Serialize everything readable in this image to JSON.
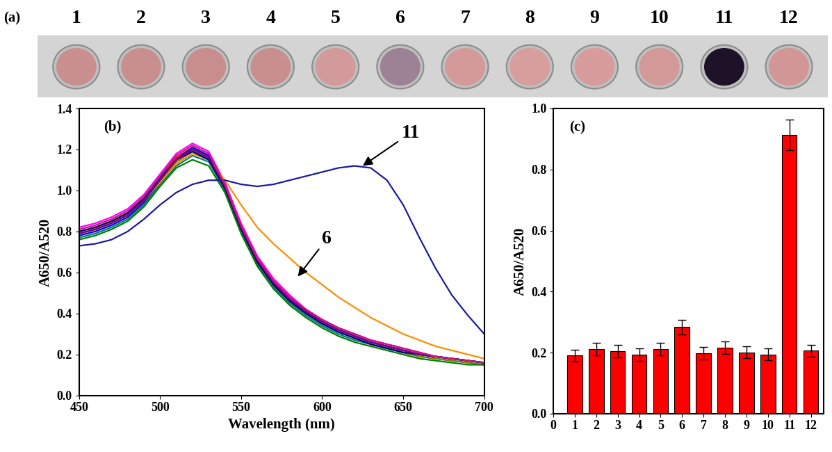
{
  "chart_data": [
    {
      "type": "wells",
      "panel_label": "(a)",
      "categories": [
        "1",
        "2",
        "3",
        "4",
        "5",
        "6",
        "7",
        "8",
        "9",
        "10",
        "11",
        "12"
      ],
      "colors": [
        "#c98f8f",
        "#c98f8f",
        "#c88e8e",
        "#c98f8f",
        "#d29a9a",
        "#9c8294",
        "#d49a9a",
        "#d89e9e",
        "#d89c9c",
        "#d39898",
        "#1e1228",
        "#d29696"
      ]
    },
    {
      "type": "line",
      "panel_label": "(b)",
      "x_label": "Wavelength (nm)",
      "y_label": "A650/A520",
      "x": [
        450,
        460,
        470,
        480,
        490,
        500,
        510,
        520,
        530,
        540,
        550,
        560,
        570,
        580,
        590,
        600,
        610,
        620,
        630,
        640,
        650,
        660,
        670,
        680,
        690,
        700
      ],
      "xlim": [
        450,
        700
      ],
      "xticks": [
        450,
        500,
        550,
        600,
        650,
        700
      ],
      "ylim": [
        0.0,
        1.4
      ],
      "yticks": [
        0.0,
        0.2,
        0.4,
        0.6,
        0.8,
        1.0,
        1.2,
        1.4
      ],
      "series": [
        {
          "color": "#000000",
          "values": [
            0.79,
            0.81,
            0.84,
            0.88,
            0.95,
            1.05,
            1.15,
            1.2,
            1.16,
            1.02,
            0.82,
            0.66,
            0.55,
            0.47,
            0.41,
            0.36,
            0.32,
            0.29,
            0.26,
            0.24,
            0.22,
            0.2,
            0.19,
            0.18,
            0.17,
            0.16
          ]
        },
        {
          "color": "#ff0000",
          "values": [
            0.8,
            0.82,
            0.85,
            0.89,
            0.96,
            1.06,
            1.16,
            1.21,
            1.17,
            1.03,
            0.83,
            0.67,
            0.56,
            0.48,
            0.42,
            0.37,
            0.33,
            0.3,
            0.27,
            0.25,
            0.23,
            0.21,
            0.19,
            0.18,
            0.17,
            0.16
          ]
        },
        {
          "color": "#0000ff",
          "values": [
            0.78,
            0.8,
            0.83,
            0.87,
            0.94,
            1.04,
            1.15,
            1.21,
            1.17,
            1.02,
            0.82,
            0.66,
            0.55,
            0.47,
            0.41,
            0.36,
            0.32,
            0.29,
            0.26,
            0.24,
            0.22,
            0.2,
            0.19,
            0.18,
            0.17,
            0.16
          ]
        },
        {
          "color": "#008080",
          "values": [
            0.77,
            0.79,
            0.82,
            0.86,
            0.93,
            1.03,
            1.12,
            1.17,
            1.14,
            1.0,
            0.8,
            0.64,
            0.53,
            0.45,
            0.39,
            0.34,
            0.3,
            0.27,
            0.25,
            0.23,
            0.21,
            0.19,
            0.18,
            0.17,
            0.16,
            0.15
          ]
        },
        {
          "color": "#ff00ff",
          "values": [
            0.82,
            0.84,
            0.87,
            0.91,
            0.98,
            1.08,
            1.18,
            1.23,
            1.19,
            1.04,
            0.84,
            0.68,
            0.57,
            0.49,
            0.42,
            0.37,
            0.33,
            0.3,
            0.27,
            0.25,
            0.23,
            0.21,
            0.19,
            0.18,
            0.17,
            0.16
          ]
        },
        {
          "color": "#ff8c00",
          "values": [
            0.79,
            0.81,
            0.84,
            0.88,
            0.95,
            1.04,
            1.13,
            1.18,
            1.15,
            1.05,
            0.93,
            0.82,
            0.74,
            0.67,
            0.6,
            0.54,
            0.48,
            0.43,
            0.38,
            0.34,
            0.3,
            0.27,
            0.24,
            0.22,
            0.2,
            0.18
          ]
        },
        {
          "color": "#808000",
          "values": [
            0.79,
            0.81,
            0.84,
            0.88,
            0.95,
            1.05,
            1.14,
            1.19,
            1.15,
            1.01,
            0.81,
            0.65,
            0.54,
            0.46,
            0.4,
            0.35,
            0.31,
            0.28,
            0.25,
            0.23,
            0.21,
            0.19,
            0.18,
            0.17,
            0.16,
            0.15
          ]
        },
        {
          "color": "#000080",
          "values": [
            0.8,
            0.82,
            0.85,
            0.89,
            0.96,
            1.06,
            1.15,
            1.19,
            1.15,
            1.01,
            0.81,
            0.65,
            0.54,
            0.46,
            0.4,
            0.35,
            0.31,
            0.28,
            0.25,
            0.23,
            0.21,
            0.2,
            0.19,
            0.18,
            0.17,
            0.16
          ]
        },
        {
          "color": "#800080",
          "values": [
            0.79,
            0.81,
            0.84,
            0.88,
            0.95,
            1.05,
            1.15,
            1.2,
            1.16,
            1.02,
            0.82,
            0.66,
            0.55,
            0.47,
            0.41,
            0.36,
            0.32,
            0.29,
            0.26,
            0.24,
            0.22,
            0.2,
            0.19,
            0.18,
            0.17,
            0.16
          ]
        },
        {
          "color": "#008000",
          "values": [
            0.76,
            0.78,
            0.81,
            0.85,
            0.92,
            1.02,
            1.11,
            1.15,
            1.12,
            0.99,
            0.79,
            0.63,
            0.52,
            0.44,
            0.38,
            0.33,
            0.29,
            0.26,
            0.24,
            0.22,
            0.2,
            0.18,
            0.17,
            0.16,
            0.15,
            0.15
          ]
        },
        {
          "color": "#1a1aa0",
          "values": [
            0.73,
            0.74,
            0.76,
            0.8,
            0.86,
            0.93,
            0.99,
            1.03,
            1.05,
            1.05,
            1.03,
            1.02,
            1.03,
            1.05,
            1.07,
            1.09,
            1.11,
            1.12,
            1.11,
            1.05,
            0.93,
            0.77,
            0.62,
            0.49,
            0.39,
            0.3
          ]
        },
        {
          "color": "#c71585",
          "values": [
            0.81,
            0.83,
            0.86,
            0.9,
            0.97,
            1.07,
            1.17,
            1.22,
            1.18,
            1.03,
            0.83,
            0.67,
            0.56,
            0.48,
            0.42,
            0.37,
            0.33,
            0.3,
            0.27,
            0.25,
            0.23,
            0.21,
            0.19,
            0.18,
            0.17,
            0.16
          ]
        }
      ],
      "annotations": [
        {
          "text": "11",
          "x": 625,
          "y": 1.12
        },
        {
          "text": "6",
          "x": 585,
          "y": 0.58
        }
      ]
    },
    {
      "type": "bar",
      "panel_label": "(c)",
      "y_label": "A650/A520",
      "x": [
        1,
        2,
        3,
        4,
        5,
        6,
        7,
        8,
        9,
        10,
        11,
        12
      ],
      "values": [
        0.19,
        0.212,
        0.205,
        0.193,
        0.212,
        0.284,
        0.198,
        0.216,
        0.201,
        0.194,
        0.914,
        0.206
      ],
      "errors": [
        0.02,
        0.02,
        0.02,
        0.02,
        0.02,
        0.024,
        0.02,
        0.02,
        0.02,
        0.02,
        0.05,
        0.02
      ],
      "color": "#ff0000",
      "xlim": [
        0,
        12.6
      ],
      "xticks": [
        0,
        1,
        2,
        3,
        4,
        5,
        6,
        7,
        8,
        9,
        10,
        11,
        12
      ],
      "ylim": [
        0.0,
        1.0
      ],
      "yticks": [
        0.0,
        0.2,
        0.4,
        0.6,
        0.8,
        1.0
      ]
    }
  ]
}
